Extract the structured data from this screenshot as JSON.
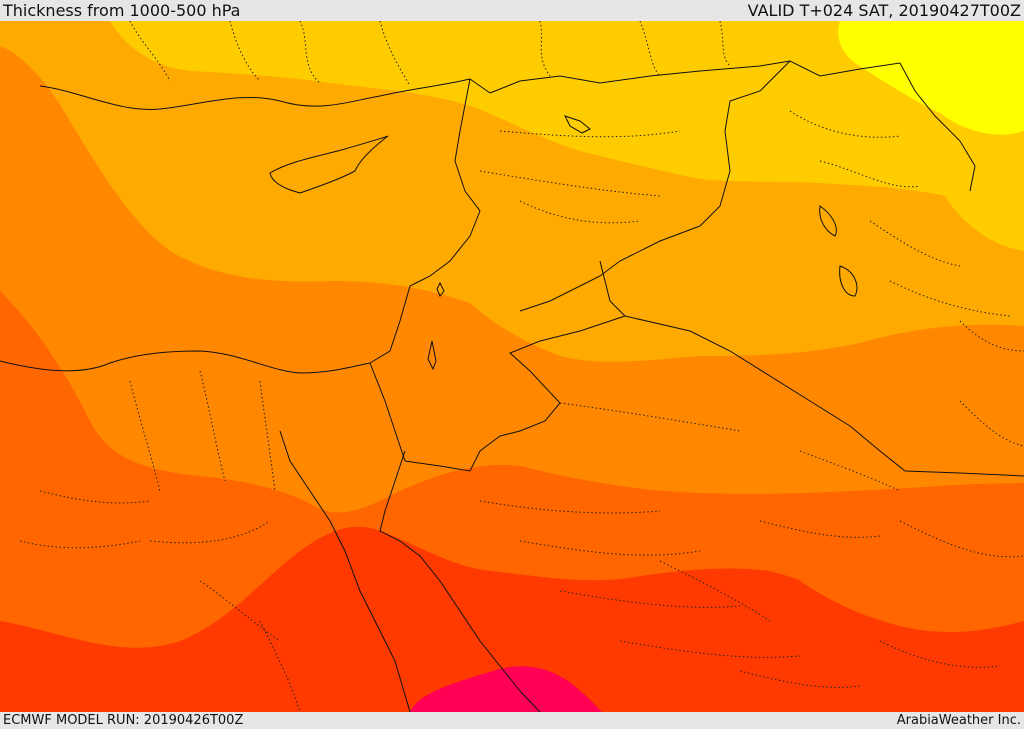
{
  "header": {
    "title": "Thickness from 1000-500 hPa",
    "valid": "VALID T+024 SAT, 20190427T00Z"
  },
  "footer": {
    "model_run": "ECMWF MODEL RUN: 20190426T00Z",
    "credit": "ArabiaWeather Inc."
  },
  "map": {
    "field": "1000-500 hPa thickness",
    "palette": {
      "yellow": "#ffff00",
      "gold": "#ffcc00",
      "amber": "#ffaa00",
      "orange": "#ff8800",
      "dark_orange": "#ff6600",
      "red_orange": "#ff3a00",
      "crimson": "#ff0055"
    },
    "line_color": "#111111"
  }
}
